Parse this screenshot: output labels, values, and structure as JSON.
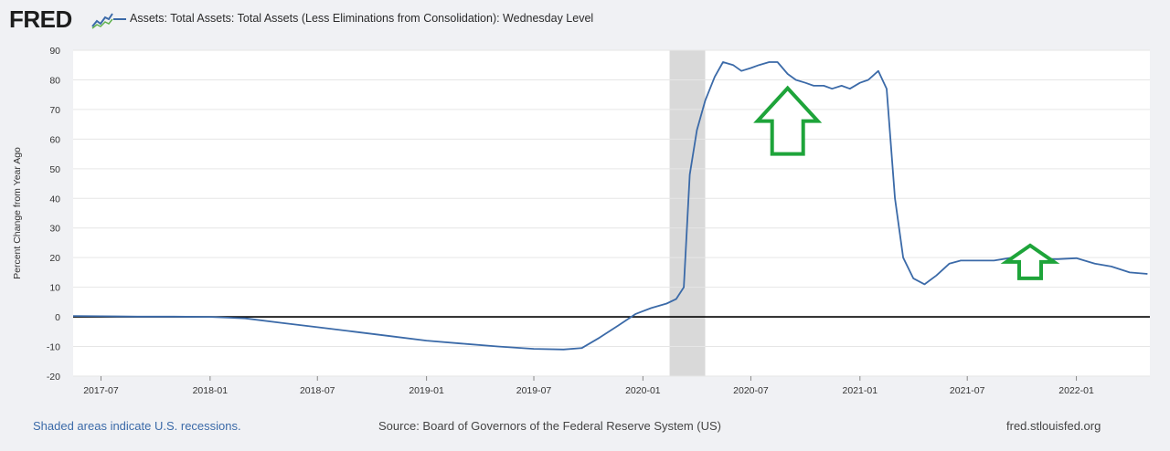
{
  "header": {
    "logo_text": "FRED",
    "series_title": "Assets: Total Assets: Total Assets (Less Eliminations from Consolidation): Wednesday Level"
  },
  "footer": {
    "recession_note": "Shaded areas indicate U.S. recessions.",
    "source": "Source: Board of Governors of the Federal Reserve System (US)",
    "site": "fred.stlouisfed.org"
  },
  "colors": {
    "line": "#3b6aa8",
    "recession": "#d9d9d9",
    "arrow": "#1ea43a",
    "zero_line": "#000000"
  },
  "chart_data": {
    "type": "line",
    "ylabel": "Percent Change from Year Ago",
    "ylim": [
      -20,
      90
    ],
    "yticks": [
      90,
      80,
      70,
      60,
      50,
      40,
      30,
      20,
      10,
      0,
      -10,
      -20
    ],
    "xlim": [
      "2017-05-15",
      "2022-05-05"
    ],
    "xticks": [
      "2017-07",
      "2018-01",
      "2018-07",
      "2019-01",
      "2019-07",
      "2020-01",
      "2020-07",
      "2021-01",
      "2021-07",
      "2022-01"
    ],
    "grid": true,
    "recessions": [
      [
        "2020-02-15",
        "2020-04-15"
      ]
    ],
    "annotations": [
      {
        "type": "up-arrow",
        "x": "2020-09-01",
        "y": 55
      },
      {
        "type": "up-arrow",
        "x": "2021-10-15",
        "y": 13
      }
    ],
    "series": [
      {
        "x": [
          "2017-05-15",
          "2017-07-01",
          "2017-09-01",
          "2017-11-01",
          "2018-01-01",
          "2018-03-01",
          "2018-05-01",
          "2018-07-01",
          "2018-09-01",
          "2018-11-01",
          "2019-01-01",
          "2019-03-01",
          "2019-05-01",
          "2019-07-01",
          "2019-08-20",
          "2019-09-20",
          "2019-10-20",
          "2019-11-20",
          "2019-12-20",
          "2020-01-15",
          "2020-02-10",
          "2020-02-26",
          "2020-03-10",
          "2020-03-20",
          "2020-04-01",
          "2020-04-15",
          "2020-05-01",
          "2020-05-15",
          "2020-06-01",
          "2020-06-15",
          "2020-07-01",
          "2020-07-15",
          "2020-08-01",
          "2020-08-15",
          "2020-09-01",
          "2020-09-15",
          "2020-10-01",
          "2020-10-15",
          "2020-11-01",
          "2020-11-15",
          "2020-12-01",
          "2020-12-15",
          "2021-01-01",
          "2021-01-15",
          "2021-02-01",
          "2021-02-15",
          "2021-03-01",
          "2021-03-15",
          "2021-04-01",
          "2021-04-20",
          "2021-05-10",
          "2021-06-01",
          "2021-06-20",
          "2021-07-15",
          "2021-08-15",
          "2021-09-15",
          "2021-10-01",
          "2021-10-15",
          "2021-11-01",
          "2021-12-01",
          "2022-01-01",
          "2022-02-01",
          "2022-03-01",
          "2022-04-01",
          "2022-05-01"
        ],
        "values": [
          0.3,
          0.2,
          0.1,
          0.1,
          0,
          -0.5,
          -2,
          -3.5,
          -5,
          -6.5,
          -8,
          -9,
          -10,
          -10.8,
          -11,
          -10.5,
          -7,
          -3,
          1,
          3,
          4.5,
          6,
          10,
          48,
          63,
          73,
          81,
          86,
          85,
          83,
          84,
          85,
          86,
          86,
          82,
          80,
          79,
          78,
          78,
          77,
          78,
          77,
          79,
          80,
          83,
          77,
          40,
          20,
          13,
          11,
          14,
          18,
          19,
          19,
          19,
          20,
          19,
          21,
          19.5,
          19.5,
          19.8,
          18,
          17,
          15,
          14.5
        ]
      }
    ]
  }
}
